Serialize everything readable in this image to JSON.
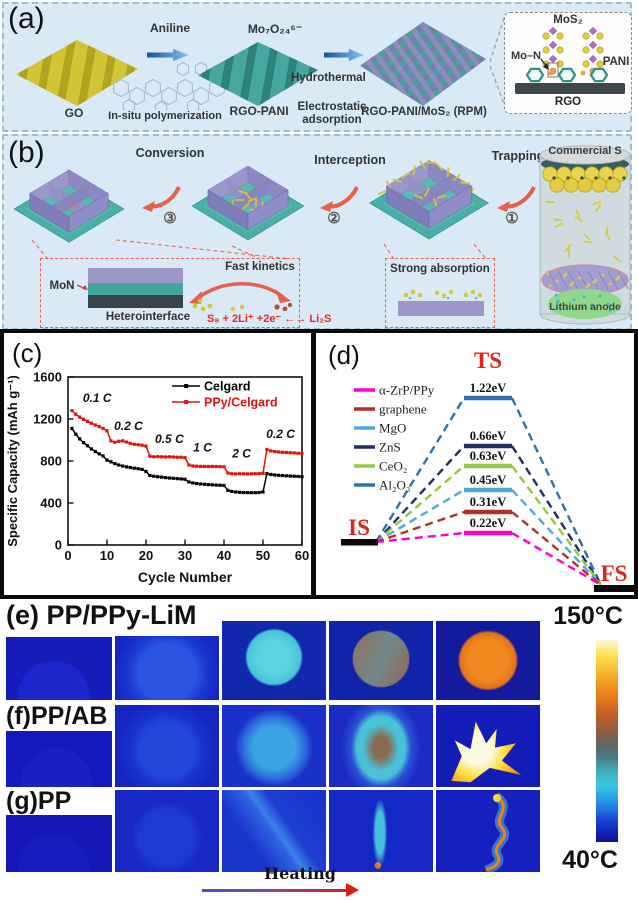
{
  "panel_a": {
    "tag": "(a)",
    "go": "GO",
    "aniline": "Aniline",
    "in_situ": "In-situ polymerization",
    "rgo_pani": "RGO-PANI",
    "mo7o24": "Mo₇O₂₄⁶⁻",
    "hydrothermal": "Hydrothermal",
    "electrostatic": "Electrostatic adsorption",
    "rpm": "RGO-PANI/MoS₂ (RPM)",
    "inset": {
      "mos2": "MoS₂",
      "mo_n": "Mo–N",
      "pani": "PANI",
      "rgo": "RGO"
    }
  },
  "panel_b": {
    "tag": "(b)",
    "steps": [
      {
        "label": "Conversion",
        "num": "③"
      },
      {
        "label": "Interception",
        "num": "②"
      },
      {
        "label": "Trapping",
        "num": "①"
      }
    ],
    "commercial_s": "Commercial S",
    "lithium_anode": "Lithium anode",
    "left_inset": {
      "mon": "MoN",
      "heterointerface": "Heterointerface",
      "fast_kinetics": "Fast kinetics",
      "equation": "S₈ + 2Li⁺ +2e⁻ ←→ Li₂S"
    },
    "right_inset": {
      "strong_absorption": "Strong absorption"
    }
  },
  "chart_data": [
    {
      "type": "line",
      "panel_tag": "(c)",
      "xlabel": "Cycle Number",
      "ylabel": "Specific Capacity (mAh g⁻¹)",
      "xlim": [
        0,
        60
      ],
      "ylim": [
        0,
        1600
      ],
      "xticks": [
        0,
        10,
        20,
        30,
        40,
        50,
        60
      ],
      "yticks": [
        0,
        400,
        800,
        1200,
        1600
      ],
      "grid": false,
      "legend_position": "top-right",
      "rate_labels": [
        {
          "text": "0.1 C",
          "cycle": 7.5,
          "capacity": 1360
        },
        {
          "text": "0.2 C",
          "cycle": 15.5,
          "capacity": 1095
        },
        {
          "text": "0.5 C",
          "cycle": 26,
          "capacity": 970
        },
        {
          "text": "1 C",
          "cycle": 34.5,
          "capacity": 890
        },
        {
          "text": "2 C",
          "cycle": 44.5,
          "capacity": 835
        },
        {
          "text": "0.2 C",
          "cycle": 54.5,
          "capacity": 1020
        }
      ],
      "series": [
        {
          "name": "Celgard",
          "color": "#000000",
          "values": [
            1110,
            1055,
            1010,
            975,
            945,
            915,
            890,
            868,
            848,
            808,
            792,
            775,
            762,
            752,
            744,
            738,
            732,
            726,
            720,
            700,
            662,
            655,
            650,
            646,
            642,
            638,
            635,
            632,
            629,
            626,
            600,
            591,
            585,
            581,
            578,
            575,
            573,
            571,
            569,
            567,
            520,
            510,
            505,
            502,
            500,
            499,
            498,
            498,
            500,
            505,
            680,
            672,
            667,
            664,
            661,
            659,
            657,
            655,
            653,
            650
          ]
        },
        {
          "name": "PPy/Celgard",
          "color": "#e3120b",
          "values": [
            1280,
            1245,
            1218,
            1197,
            1178,
            1160,
            1143,
            1127,
            1110,
            1088,
            992,
            978,
            988,
            992,
            980,
            968,
            960,
            955,
            950,
            942,
            845,
            840,
            842,
            840,
            838,
            840,
            838,
            836,
            836,
            832,
            762,
            753,
            750,
            748,
            748,
            747,
            748,
            747,
            746,
            744,
            685,
            679,
            677,
            678,
            678,
            677,
            678,
            679,
            680,
            683,
            910,
            896,
            890,
            886,
            883,
            881,
            879,
            877,
            874,
            871
          ]
        }
      ]
    },
    {
      "type": "energy-diagram",
      "panel_tag": "(d)",
      "states": {
        "initial": "IS",
        "transition": "TS",
        "final": "FS"
      },
      "barriers": [
        {
          "name": "α-ZrP/PPy",
          "color": "#ff00c8",
          "energy_ev": 0.22,
          "label": "0.22eV"
        },
        {
          "name": "graphene",
          "color": "#b23028",
          "energy_ev": 0.31,
          "label": "0.31eV"
        },
        {
          "name": "MgO",
          "color": "#4fa8dc",
          "energy_ev": 0.45,
          "label": "0.45eV"
        },
        {
          "name": "ZnS",
          "color": "#1d2d66",
          "energy_ev": 0.66,
          "label": "0.66eV"
        },
        {
          "name": "CeO₂",
          "color": "#94c83e",
          "energy_ev": 0.63,
          "label": "0.63eV"
        },
        {
          "name": "Al₂O₃",
          "color": "#2d72b0",
          "energy_ev": 1.22,
          "label": "1.22eV"
        }
      ]
    }
  ],
  "thermal": {
    "rows": [
      {
        "tag": "(e)",
        "label": "PP/PPy-LiM"
      },
      {
        "tag": "(f)",
        "label": "PP/AB"
      },
      {
        "tag": "(g)",
        "label": "PP"
      }
    ],
    "colorbar": {
      "top": "150°C",
      "bottom": "40°C"
    },
    "heating": "Heating"
  }
}
